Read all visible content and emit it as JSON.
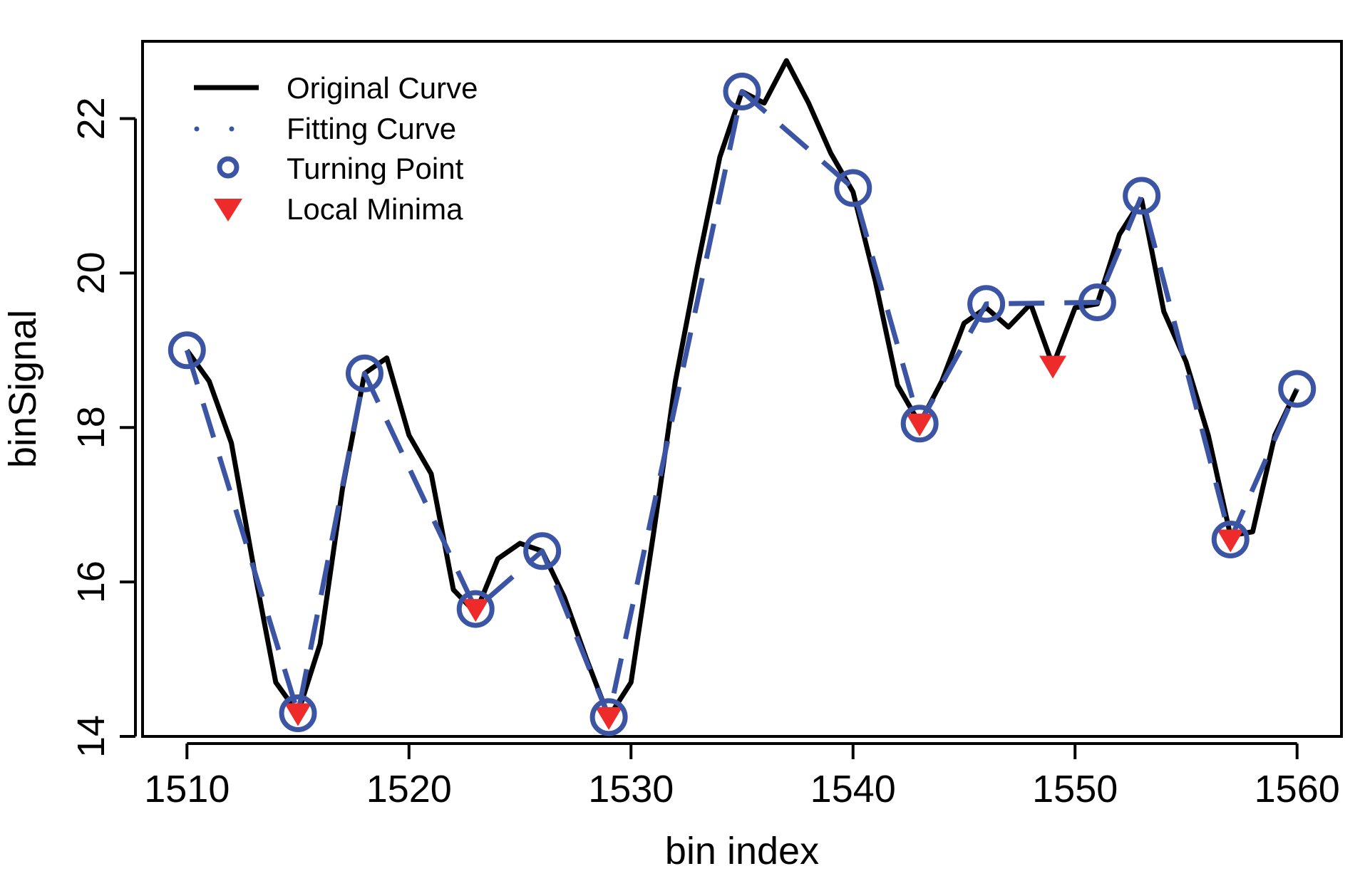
{
  "chart_data": {
    "type": "line",
    "title": "",
    "xlabel": "bin index",
    "ylabel": "binSignal",
    "xlim": [
      1508,
      1562
    ],
    "ylim": [
      14.0,
      23.0
    ],
    "x_ticks": [
      1510,
      1520,
      1530,
      1540,
      1550,
      1560
    ],
    "y_ticks": [
      14,
      16,
      18,
      20,
      22
    ],
    "grid": false,
    "legend_position": "top-left",
    "colors": {
      "original": "#000000",
      "fitting": "#3b55a4",
      "turning": "#3b55a4",
      "minima": "#ee2b2b"
    },
    "series": [
      {
        "name": "Original Curve",
        "style": "solid",
        "x": [
          1510,
          1511,
          1512,
          1513,
          1514,
          1515,
          1516,
          1517,
          1518,
          1519,
          1520,
          1521,
          1522,
          1523,
          1524,
          1525,
          1526,
          1527,
          1528,
          1529,
          1530,
          1531,
          1532,
          1533,
          1534,
          1535,
          1536,
          1537,
          1538,
          1539,
          1540,
          1541,
          1542,
          1543,
          1544,
          1545,
          1546,
          1547,
          1548,
          1549,
          1550,
          1551,
          1552,
          1553,
          1554,
          1555,
          1556,
          1557,
          1558,
          1559,
          1560
        ],
        "y": [
          19.0,
          18.6,
          17.8,
          16.2,
          14.7,
          14.3,
          15.2,
          17.2,
          18.7,
          18.9,
          17.9,
          17.4,
          15.9,
          15.6,
          16.3,
          16.5,
          16.4,
          15.8,
          15.0,
          14.25,
          14.7,
          16.6,
          18.6,
          20.1,
          21.5,
          22.35,
          22.2,
          22.75,
          22.2,
          21.55,
          21.05,
          19.9,
          18.55,
          18.05,
          18.6,
          19.35,
          19.55,
          19.3,
          19.6,
          18.8,
          19.55,
          19.6,
          20.5,
          20.95,
          19.5,
          18.85,
          17.9,
          16.6,
          16.65,
          17.9,
          18.5
        ]
      },
      {
        "name": "Fitting Curve",
        "style": "dashed",
        "x": [
          1510,
          1515,
          1518,
          1523,
          1526,
          1529,
          1535,
          1540,
          1543,
          1546,
          1551,
          1553,
          1557,
          1560
        ],
        "y": [
          19.0,
          14.3,
          18.7,
          15.65,
          16.4,
          14.25,
          22.35,
          21.1,
          18.05,
          19.6,
          19.62,
          21.0,
          16.55,
          18.5
        ]
      },
      {
        "name": "Turning Point",
        "style": "circle",
        "x": [
          1510,
          1515,
          1518,
          1523,
          1526,
          1529,
          1535,
          1540,
          1543,
          1546,
          1551,
          1553,
          1557,
          1560
        ],
        "y": [
          19.0,
          14.3,
          18.7,
          15.65,
          16.4,
          14.25,
          22.35,
          21.1,
          18.05,
          19.6,
          19.62,
          21.0,
          16.55,
          18.5
        ]
      },
      {
        "name": "Local Minima",
        "style": "triangle-down",
        "x": [
          1515,
          1523,
          1529,
          1543,
          1549,
          1557
        ],
        "y": [
          14.3,
          15.65,
          14.25,
          18.05,
          18.8,
          16.55
        ]
      }
    ]
  }
}
